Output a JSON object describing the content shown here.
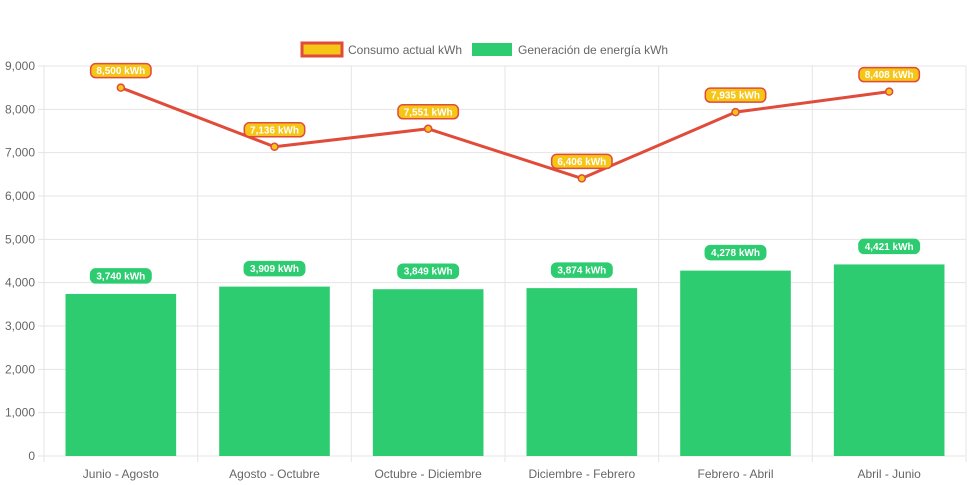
{
  "colors": {
    "consumo_line": "#e04b3a",
    "consumo_fill": "#f5c518",
    "generacion": "#2ecc71",
    "grid": "#e5e5e5",
    "axis_text": "#666666"
  },
  "chart_data": {
    "type": "bar",
    "categories": [
      "Junio - Agosto",
      "Agosto - Octubre",
      "Octubre - Diciembre",
      "Diciembre - Febrero",
      "Febrero - Abril",
      "Abril - Junio"
    ],
    "series": [
      {
        "name": "Consumo actual kWh",
        "type": "line",
        "values": [
          8500,
          7136,
          7551,
          6406,
          7935,
          8408
        ],
        "labels": [
          "8,500 kWh",
          "7,136 kWh",
          "7,551 kWh",
          "6,406 kWh",
          "7,935 kWh",
          "8,408 kWh"
        ]
      },
      {
        "name": "Generación de energía kWh",
        "type": "bar",
        "values": [
          3740,
          3909,
          3849,
          3874,
          4278,
          4421
        ],
        "labels": [
          "3,740 kWh",
          "3,909 kWh",
          "3,849 kWh",
          "3,874 kWh",
          "4,278 kWh",
          "4,421 kWh"
        ]
      }
    ],
    "y_ticks": [
      "0",
      "1,000",
      "2,000",
      "3,000",
      "4,000",
      "5,000",
      "6,000",
      "7,000",
      "8,000",
      "9,000"
    ],
    "ylim": [
      0,
      9000
    ],
    "grid": true,
    "legend_position": "top-center"
  }
}
